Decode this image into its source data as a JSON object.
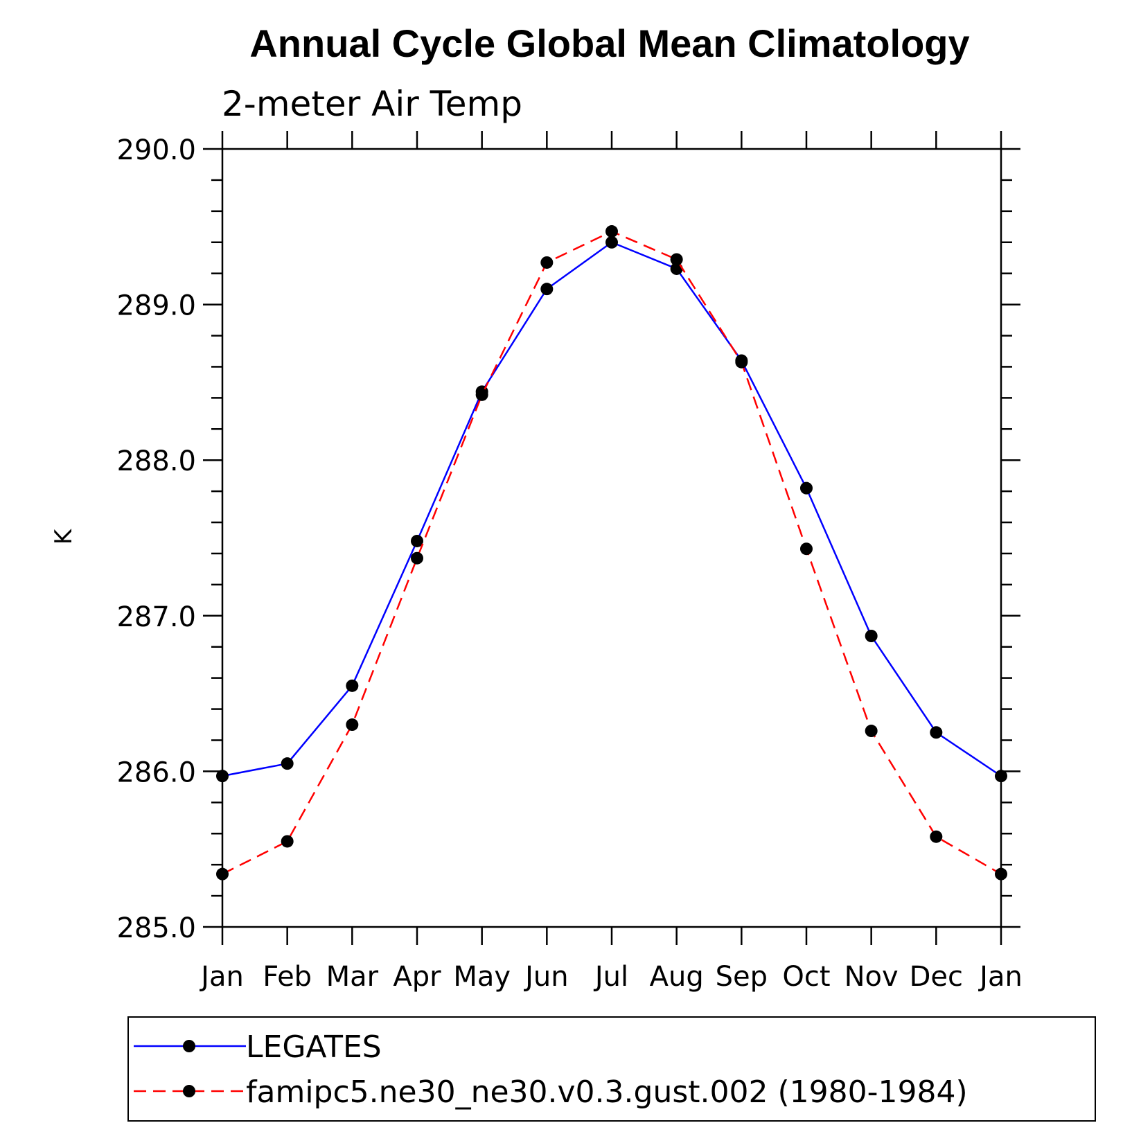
{
  "chart_data": {
    "type": "line",
    "title": "Annual Cycle Global Mean Climatology",
    "subtitle": "2-meter Air Temp",
    "xlabel": "",
    "ylabel": "K",
    "categories": [
      "Jan",
      "Feb",
      "Mar",
      "Apr",
      "May",
      "Jun",
      "Jul",
      "Aug",
      "Sep",
      "Oct",
      "Nov",
      "Dec",
      "Jan"
    ],
    "ylim": [
      285.0,
      290.0
    ],
    "yticks": [
      "285.0",
      "286.0",
      "287.0",
      "288.0",
      "289.0",
      "290.0"
    ],
    "y_minor_step": 0.2,
    "grid": false,
    "legend_position": "bottom",
    "series": [
      {
        "name": "LEGATES",
        "color": "#0000ff",
        "dash": "solid",
        "marker": "filled-circle",
        "values": [
          285.97,
          286.05,
          286.55,
          287.48,
          288.44,
          289.1,
          289.4,
          289.23,
          288.64,
          287.82,
          286.87,
          286.25,
          285.97
        ]
      },
      {
        "name": "famipc5.ne30_ne30.v0.3.gust.002 (1980-1984)",
        "color": "#ff0000",
        "dash": "dashed",
        "marker": "filled-circle",
        "values": [
          285.34,
          285.55,
          286.3,
          287.37,
          288.42,
          289.27,
          289.47,
          289.29,
          288.63,
          287.43,
          286.26,
          285.58,
          285.34
        ]
      }
    ]
  }
}
